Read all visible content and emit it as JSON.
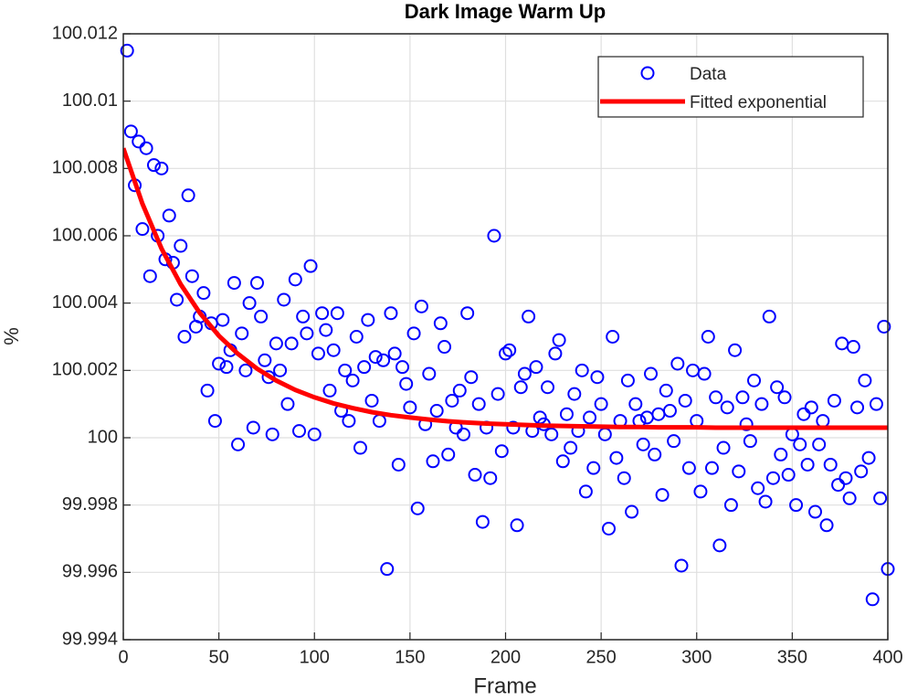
{
  "chart_data": {
    "type": "scatter",
    "title": "Dark Image Warm Up",
    "x_label": "Frame",
    "y_label": "%",
    "xlim": [
      0,
      400
    ],
    "xticks": [
      0,
      50,
      100,
      150,
      200,
      250,
      300,
      350,
      400
    ],
    "ylim": [
      99.994,
      100.012
    ],
    "yticks": [
      99.994,
      99.996,
      99.998,
      100,
      100.002,
      100.004,
      100.006,
      100.008,
      100.01,
      100.012
    ],
    "grid": true,
    "legend": "northeast",
    "series": [
      {
        "name": "Data",
        "color": "#0000ff",
        "marker": "circle",
        "x": [
          2,
          4,
          6,
          8,
          10,
          12,
          14,
          16,
          18,
          20,
          22,
          24,
          26,
          28,
          30,
          32,
          34,
          36,
          38,
          40,
          42,
          44,
          46,
          48,
          50,
          52,
          54,
          56,
          58,
          60,
          62,
          64,
          66,
          68,
          70,
          72,
          74,
          76,
          78,
          80,
          82,
          84,
          86,
          88,
          90,
          92,
          94,
          96,
          98,
          100,
          102,
          104,
          106,
          108,
          110,
          112,
          114,
          116,
          118,
          120,
          122,
          124,
          126,
          128,
          130,
          132,
          134,
          136,
          138,
          140,
          142,
          144,
          146,
          148,
          150,
          152,
          154,
          156,
          158,
          160,
          162,
          164,
          166,
          168,
          170,
          172,
          174,
          176,
          178,
          180,
          182,
          184,
          186,
          188,
          190,
          192,
          194,
          196,
          198,
          200,
          202,
          204,
          206,
          208,
          210,
          212,
          214,
          216,
          218,
          220,
          222,
          224,
          226,
          228,
          230,
          232,
          234,
          236,
          238,
          240,
          242,
          244,
          246,
          248,
          250,
          252,
          254,
          256,
          258,
          260,
          262,
          264,
          266,
          268,
          270,
          272,
          274,
          276,
          278,
          280,
          282,
          284,
          286,
          288,
          290,
          292,
          294,
          296,
          298,
          300,
          302,
          304,
          306,
          308,
          310,
          312,
          314,
          316,
          318,
          320,
          322,
          324,
          326,
          328,
          330,
          332,
          334,
          336,
          338,
          340,
          342,
          344,
          346,
          348,
          350,
          352,
          354,
          356,
          358,
          360,
          362,
          364,
          366,
          368,
          370,
          372,
          374,
          376,
          378,
          380,
          382,
          384,
          386,
          388,
          390,
          392,
          394,
          396,
          398,
          400
        ],
        "values": [
          100.0115,
          100.0091,
          100.0075,
          100.0088,
          100.0062,
          100.0086,
          100.0048,
          100.0081,
          100.006,
          100.008,
          100.0053,
          100.0066,
          100.0052,
          100.0041,
          100.0057,
          100.003,
          100.0072,
          100.0048,
          100.0033,
          100.0036,
          100.0043,
          100.0014,
          100.0034,
          100.0005,
          100.0022,
          100.0035,
          100.0021,
          100.0026,
          100.0046,
          99.9998,
          100.0031,
          100.002,
          100.004,
          100.0003,
          100.0046,
          100.0036,
          100.0023,
          100.0018,
          100.0001,
          100.0028,
          100.002,
          100.0041,
          100.001,
          100.0028,
          100.0047,
          100.0002,
          100.0036,
          100.0031,
          100.0051,
          100.0001,
          100.0025,
          100.0037,
          100.0032,
          100.0014,
          100.0026,
          100.0037,
          100.0008,
          100.002,
          100.0005,
          100.0017,
          100.003,
          99.9997,
          100.0021,
          100.0035,
          100.0011,
          100.0024,
          100.0005,
          100.0023,
          99.9961,
          100.0037,
          100.0025,
          99.9992,
          100.0021,
          100.0016,
          100.0009,
          100.0031,
          99.9979,
          100.0039,
          100.0004,
          100.0019,
          99.9993,
          100.0008,
          100.0034,
          100.0027,
          99.9995,
          100.0011,
          100.0003,
          100.0014,
          100.0001,
          100.0037,
          100.0018,
          99.9989,
          100.001,
          99.9975,
          100.0003,
          99.9988,
          100.006,
          100.0013,
          99.9996,
          100.0025,
          100.0026,
          100.0003,
          99.9974,
          100.0015,
          100.0019,
          100.0036,
          100.0002,
          100.0021,
          100.0006,
          100.0004,
          100.0015,
          100.0001,
          100.0025,
          100.0029,
          99.9993,
          100.0007,
          99.9997,
          100.0013,
          100.0002,
          100.002,
          99.9984,
          100.0006,
          99.9991,
          100.0018,
          100.001,
          100.0001,
          99.9973,
          100.003,
          99.9994,
          100.0005,
          99.9988,
          100.0017,
          99.9978,
          100.001,
          100.0005,
          99.9998,
          100.0006,
          100.0019,
          99.9995,
          100.0007,
          99.9983,
          100.0014,
          100.0008,
          99.9999,
          100.0022,
          99.9962,
          100.0011,
          99.9991,
          100.002,
          100.0005,
          99.9984,
          100.0019,
          100.003,
          99.9991,
          100.0012,
          99.9968,
          99.9997,
          100.0009,
          99.998,
          100.0026,
          99.999,
          100.0012,
          100.0004,
          99.9999,
          100.0017,
          99.9985,
          100.001,
          99.9981,
          100.0036,
          99.9988,
          100.0015,
          99.9995,
          100.0012,
          99.9989,
          100.0001,
          99.998,
          99.9998,
          100.0007,
          99.9992,
          100.0009,
          99.9978,
          99.9998,
          100.0005,
          99.9974,
          99.9992,
          100.0011,
          99.9986,
          100.0028,
          99.9988,
          99.9982,
          100.0027,
          100.0009,
          99.999,
          100.0017,
          99.9994,
          99.9952,
          100.001,
          99.9982,
          100.0033,
          99.9961
        ]
      },
      {
        "name": "Fitted exponential",
        "color": "#ff0000",
        "line": true,
        "x": [
          0,
          10,
          20,
          30,
          40,
          50,
          60,
          70,
          80,
          90,
          100,
          110,
          120,
          130,
          140,
          150,
          160,
          170,
          180,
          190,
          200,
          210,
          220,
          230,
          240,
          250,
          260,
          270,
          280,
          290,
          300,
          310,
          320,
          330,
          340,
          350,
          360,
          370,
          380,
          390,
          400
        ],
        "values": [
          100.0086,
          100.00695,
          100.00562,
          100.00456,
          100.00371,
          100.00303,
          100.00249,
          100.00205,
          100.0017,
          100.00142,
          100.0012,
          100.00102,
          100.00088,
          100.00076,
          100.00067,
          100.0006,
          100.00054,
          100.00049,
          100.00045,
          100.00042,
          100.0004,
          100.00038,
          100.00036,
          100.00035,
          100.00034,
          100.00033,
          100.00032,
          100.00032,
          100.00031,
          100.00031,
          100.00031,
          100.0003,
          100.0003,
          100.0003,
          100.0003,
          100.0003,
          100.0003,
          100.0003,
          100.0003,
          100.0003,
          100.0003
        ]
      }
    ]
  }
}
